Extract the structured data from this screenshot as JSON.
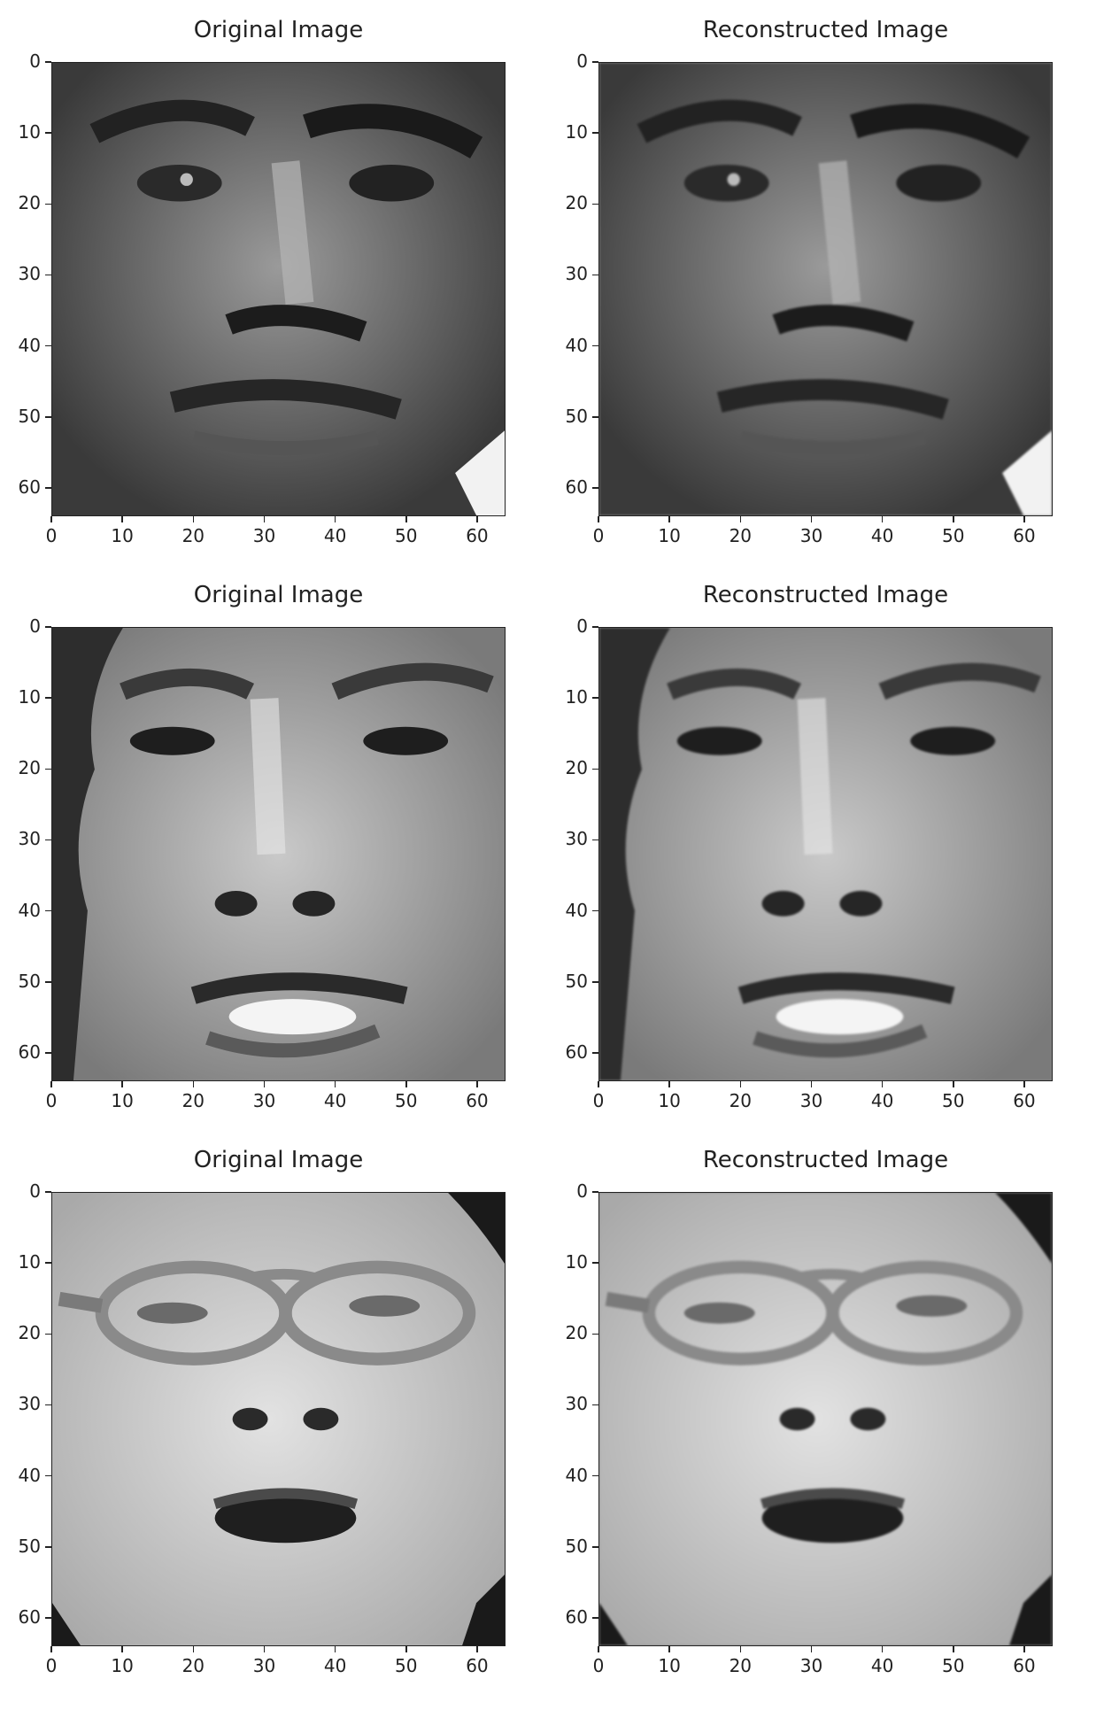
{
  "chart_data": [
    {
      "type": "image",
      "title": "Original Image",
      "face": "face-1-original",
      "xlim": [
        0,
        64
      ],
      "ylim": [
        64,
        0
      ],
      "xticks": [
        0,
        10,
        20,
        30,
        40,
        50,
        60
      ],
      "yticks": [
        0,
        10,
        20,
        30,
        40,
        50,
        60
      ]
    },
    {
      "type": "image",
      "title": "Reconstructed Image",
      "face": "face-1-reconstructed",
      "xlim": [
        0,
        64
      ],
      "ylim": [
        64,
        0
      ],
      "xticks": [
        0,
        10,
        20,
        30,
        40,
        50,
        60
      ],
      "yticks": [
        0,
        10,
        20,
        30,
        40,
        50,
        60
      ]
    },
    {
      "type": "image",
      "title": "Original Image",
      "face": "face-2-original",
      "xlim": [
        0,
        64
      ],
      "ylim": [
        64,
        0
      ],
      "xticks": [
        0,
        10,
        20,
        30,
        40,
        50,
        60
      ],
      "yticks": [
        0,
        10,
        20,
        30,
        40,
        50,
        60
      ]
    },
    {
      "type": "image",
      "title": "Reconstructed Image",
      "face": "face-2-reconstructed",
      "xlim": [
        0,
        64
      ],
      "ylim": [
        64,
        0
      ],
      "xticks": [
        0,
        10,
        20,
        30,
        40,
        50,
        60
      ],
      "yticks": [
        0,
        10,
        20,
        30,
        40,
        50,
        60
      ]
    },
    {
      "type": "image",
      "title": "Original Image",
      "face": "face-3-original",
      "xlim": [
        0,
        64
      ],
      "ylim": [
        64,
        0
      ],
      "xticks": [
        0,
        10,
        20,
        30,
        40,
        50,
        60
      ],
      "yticks": [
        0,
        10,
        20,
        30,
        40,
        50,
        60
      ]
    },
    {
      "type": "image",
      "title": "Reconstructed Image",
      "face": "face-3-reconstructed",
      "xlim": [
        0,
        64
      ],
      "ylim": [
        64,
        0
      ],
      "xticks": [
        0,
        10,
        20,
        30,
        40,
        50,
        60
      ],
      "yticks": [
        0,
        10,
        20,
        30,
        40,
        50,
        60
      ]
    }
  ]
}
